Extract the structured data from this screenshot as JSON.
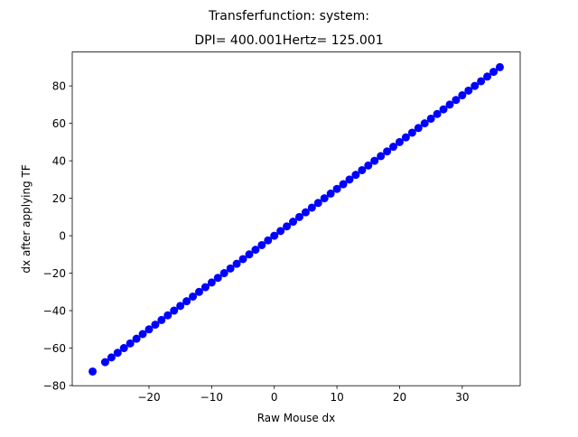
{
  "chart_data": {
    "type": "scatter",
    "title": "Transferfunction: system:",
    "subtitle": "DPI= 400.001Hertz= 125.001",
    "xlabel": "Raw Mouse dx",
    "ylabel": "dx after applying TF",
    "xlim": [
      -32.25,
      39.25
    ],
    "ylim": [
      -80.1,
      98.1
    ],
    "x_ticks": [
      -20,
      -10,
      0,
      10,
      20,
      30
    ],
    "y_ticks": [
      -80,
      -60,
      -40,
      -20,
      0,
      20,
      40,
      60,
      80
    ],
    "x_tick_labels": [
      "−20",
      "−10",
      "0",
      "10",
      "20",
      "30"
    ],
    "y_tick_labels": [
      "−80",
      "−60",
      "−40",
      "−20",
      "0",
      "20",
      "40",
      "60",
      "80"
    ],
    "grid": false,
    "legend": "none",
    "marker": "circle",
    "color": "#0000ff",
    "x": [
      -29,
      -27,
      -26,
      -25,
      -24,
      -23,
      -22,
      -21,
      -20,
      -19,
      -18,
      -17,
      -16,
      -15,
      -14,
      -13,
      -12,
      -11,
      -10,
      -9,
      -8,
      -7,
      -6,
      -5,
      -4,
      -3,
      -2,
      -1,
      0,
      1,
      2,
      3,
      4,
      5,
      6,
      7,
      8,
      9,
      10,
      11,
      12,
      13,
      14,
      15,
      16,
      17,
      18,
      19,
      20,
      21,
      22,
      23,
      24,
      25,
      26,
      27,
      28,
      29,
      30,
      31,
      32,
      33,
      34,
      35,
      36
    ],
    "y": [
      -72.5,
      -67.5,
      -65,
      -62.5,
      -60,
      -57.5,
      -55,
      -52.5,
      -50,
      -47.5,
      -45,
      -42.5,
      -40,
      -37.5,
      -35,
      -32.5,
      -30,
      -27.5,
      -25,
      -22.5,
      -20,
      -17.5,
      -15,
      -12.5,
      -10,
      -7.5,
      -5,
      -2.5,
      0,
      2.5,
      5,
      7.5,
      10,
      12.5,
      15,
      17.5,
      20,
      22.5,
      25,
      27.5,
      30,
      32.5,
      35,
      37.5,
      40,
      42.5,
      45,
      47.5,
      50,
      52.5,
      55,
      57.5,
      60,
      62.5,
      65,
      67.5,
      70,
      72.5,
      75,
      77.5,
      80,
      82.5,
      85,
      87.5,
      90
    ]
  }
}
